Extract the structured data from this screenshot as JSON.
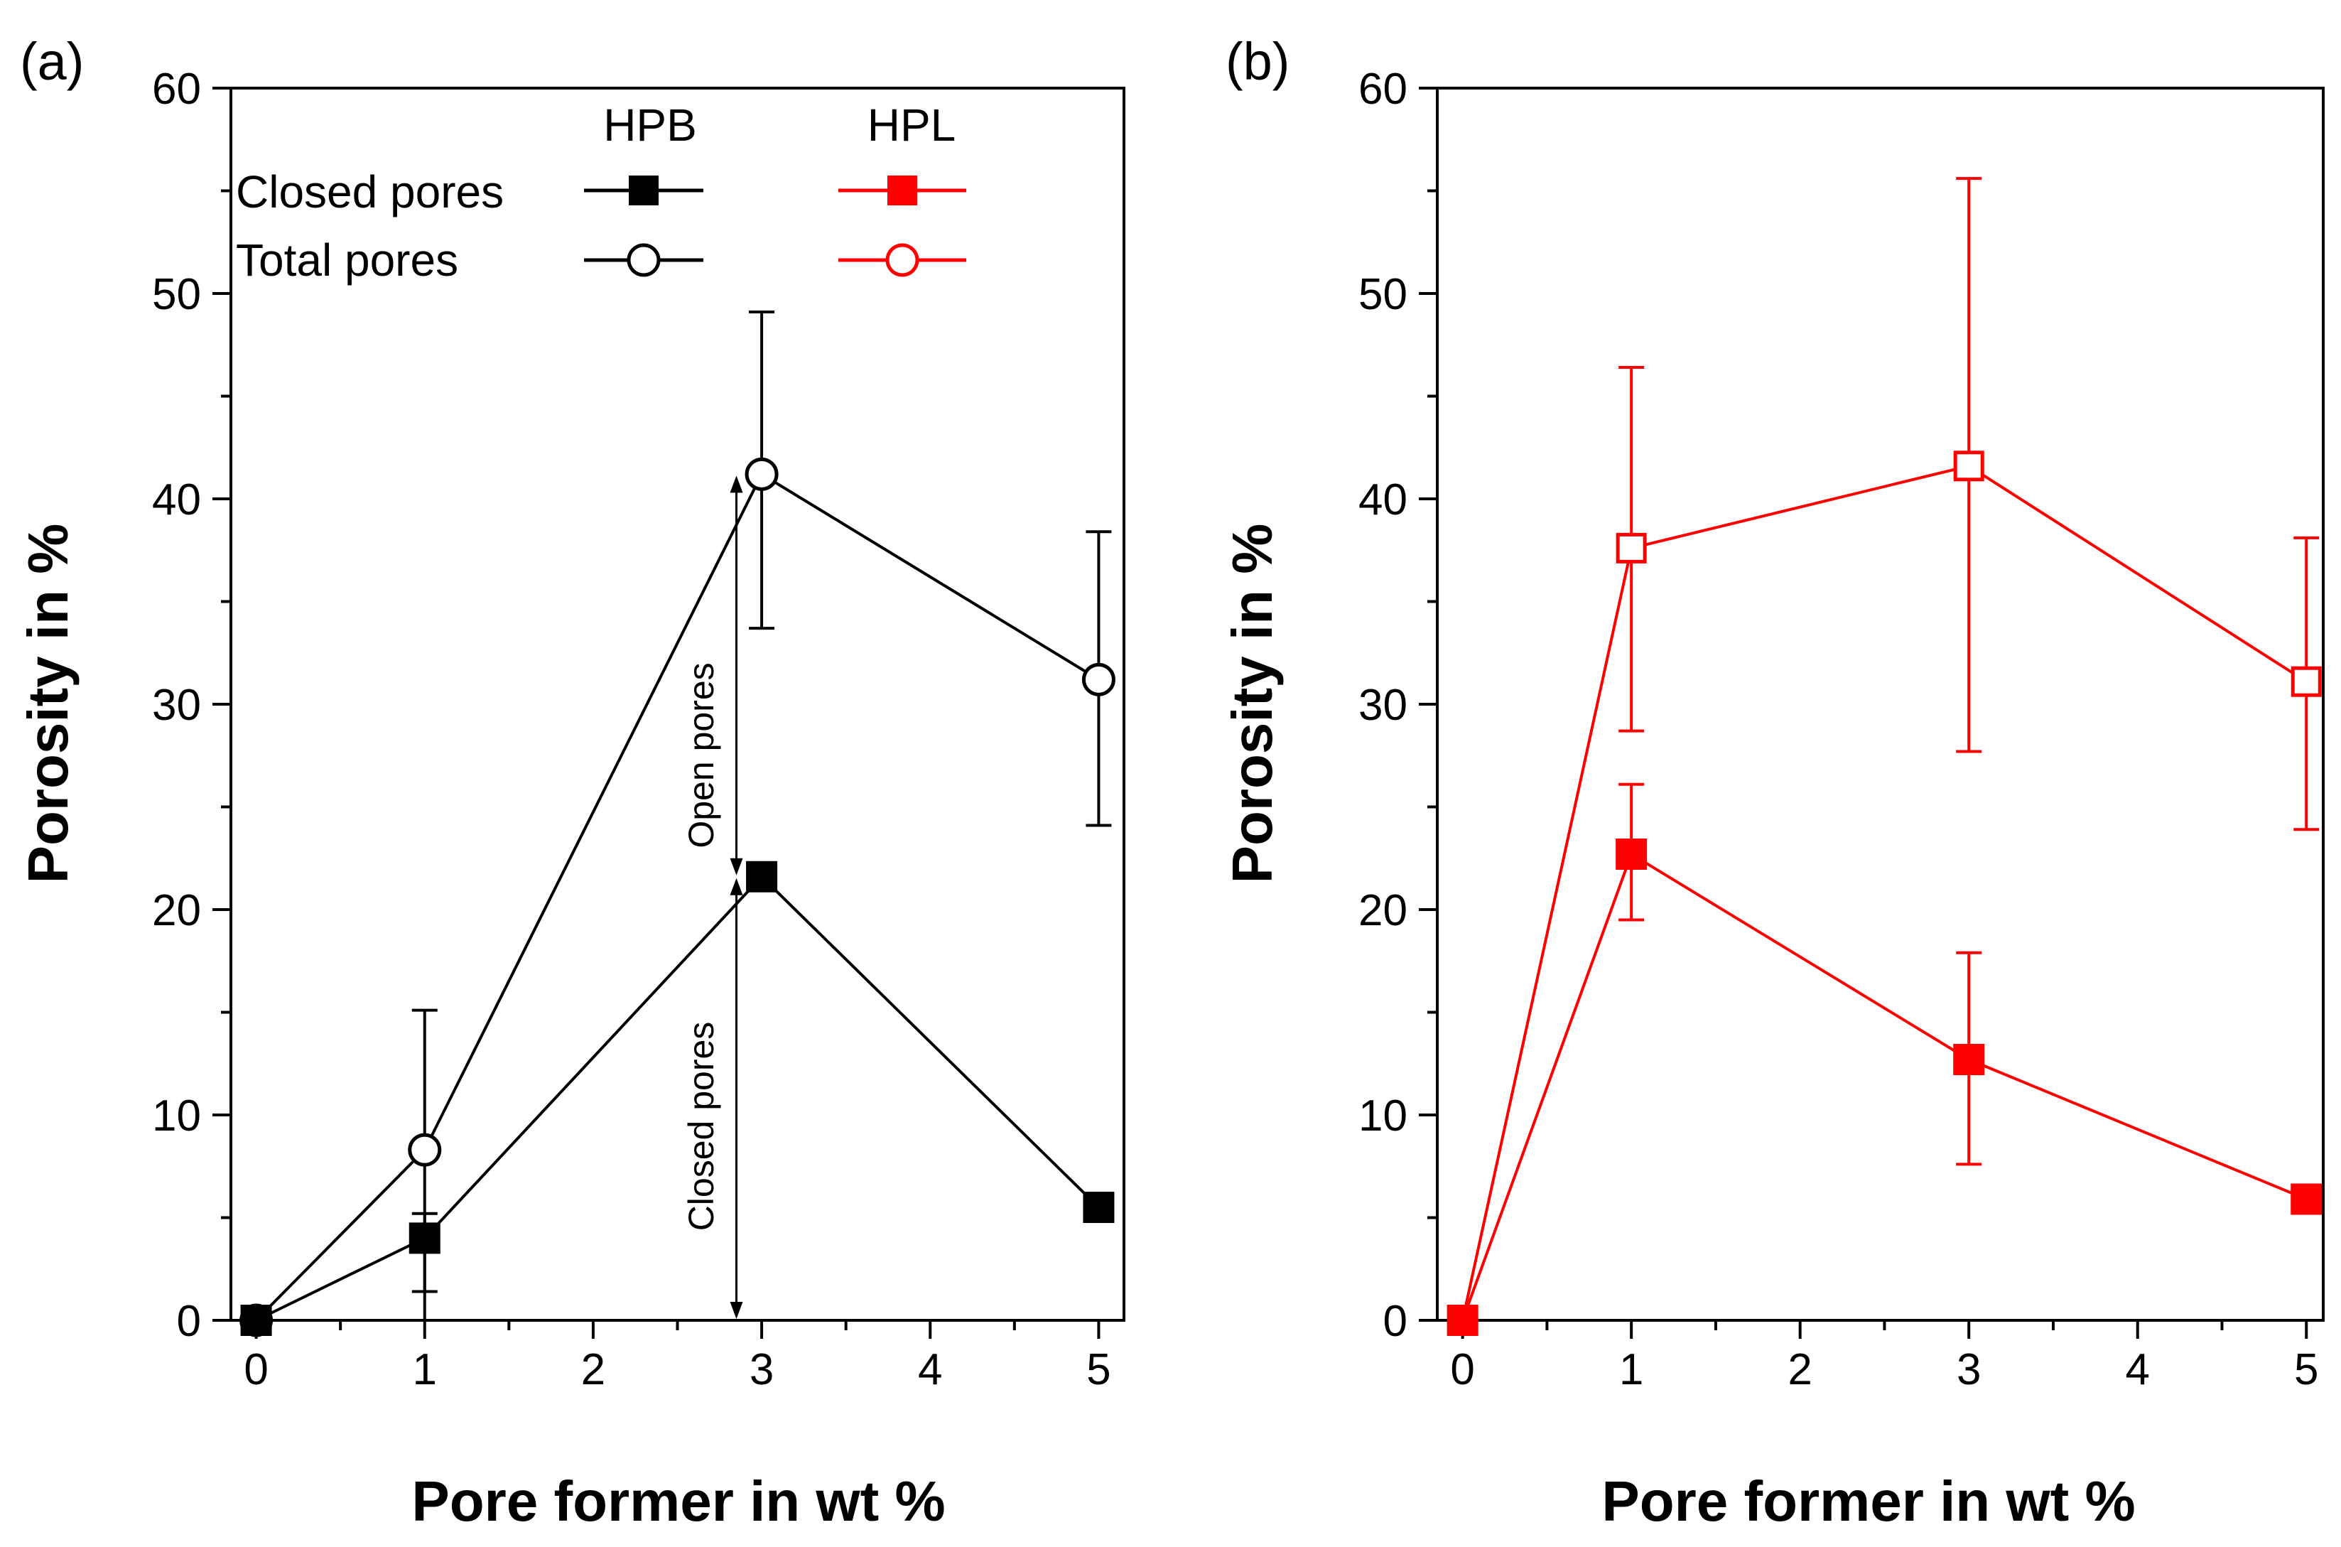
{
  "chart_data": [
    {
      "panel_label": "(a)",
      "type": "line",
      "xlabel": "Pore former in wt %",
      "ylabel": "Porosity in %",
      "xlim": [
        -0.15,
        5.15
      ],
      "ylim": [
        0,
        60
      ],
      "xticks": [
        0,
        1,
        2,
        3,
        4,
        5
      ],
      "yticks": [
        0,
        10,
        20,
        30,
        40,
        50,
        60
      ],
      "legend": {
        "position": "top",
        "column_headers": [
          "HPB",
          "HPL"
        ],
        "row_labels": [
          "Closed pores",
          "Total pores"
        ]
      },
      "series": [
        {
          "name": "HPB Total pores",
          "color": "#000000",
          "marker": "circle-open",
          "x": [
            0,
            1,
            3,
            5
          ],
          "y": [
            0,
            8.3,
            41.2,
            31.2
          ],
          "err_low": [
            null,
            0,
            33.7,
            24.1
          ],
          "err_high": [
            null,
            15.1,
            49.1,
            38.4
          ]
        },
        {
          "name": "HPB Closed pores",
          "color": "#000000",
          "marker": "square-filled",
          "x": [
            0,
            1,
            3,
            5
          ],
          "y": [
            0,
            4.0,
            21.6,
            5.5
          ],
          "err_low": [
            null,
            1.4,
            null,
            null
          ],
          "err_high": [
            null,
            5.2,
            null,
            null
          ]
        }
      ],
      "annotations": [
        {
          "text": "Open pores",
          "x": 2.85,
          "y_from": 21.6,
          "y_to": 41.2
        },
        {
          "text": "Closed pores",
          "x": 2.85,
          "y_from": 0,
          "y_to": 21.6
        }
      ]
    },
    {
      "panel_label": "(b)",
      "type": "line",
      "xlabel": "Pore former in wt %",
      "ylabel": "Porosity in %",
      "xlim": [
        -0.15,
        5.1
      ],
      "ylim": [
        0,
        60
      ],
      "xticks": [
        0,
        1,
        2,
        3,
        4,
        5
      ],
      "yticks": [
        0,
        10,
        20,
        30,
        40,
        50,
        60
      ],
      "series": [
        {
          "name": "HPL Total pores",
          "color": "#ff0000",
          "marker": "square-open",
          "x": [
            0,
            1,
            3,
            5
          ],
          "y": [
            0,
            37.6,
            41.6,
            31.1
          ],
          "err_low": [
            null,
            28.7,
            27.7,
            23.9
          ],
          "err_high": [
            null,
            46.4,
            55.6,
            38.1
          ]
        },
        {
          "name": "HPL Closed pores",
          "color": "#ff0000",
          "marker": "square-filled",
          "x": [
            0,
            1,
            3,
            5
          ],
          "y": [
            0,
            22.7,
            12.7,
            5.9
          ],
          "err_low": [
            null,
            19.5,
            7.6,
            null
          ],
          "err_high": [
            null,
            26.1,
            17.9,
            null
          ]
        }
      ]
    }
  ]
}
